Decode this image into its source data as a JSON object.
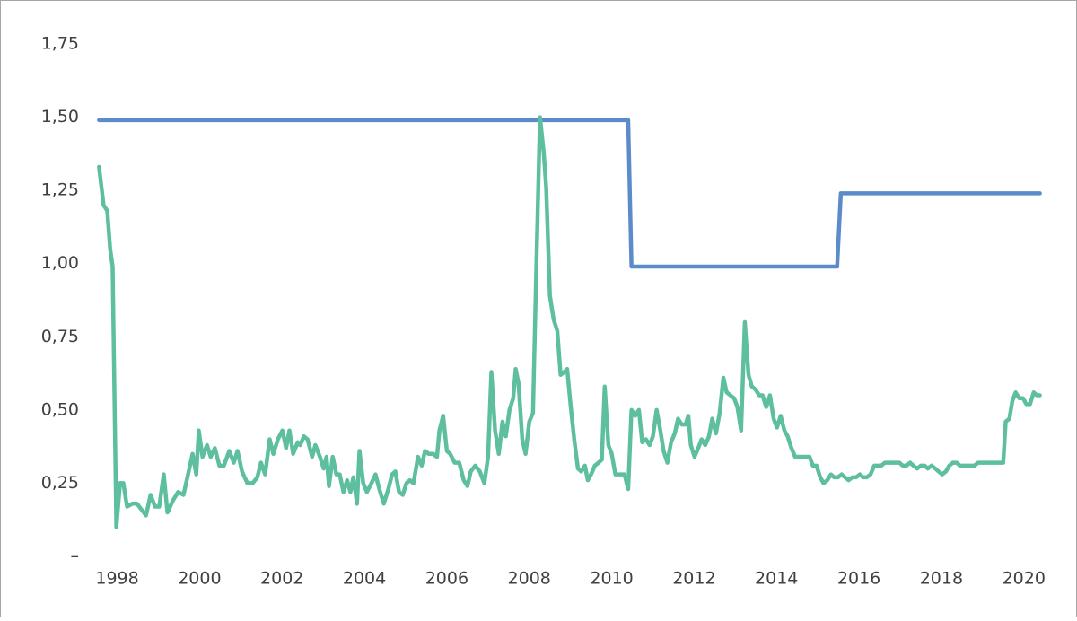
{
  "chart_data": {
    "type": "line",
    "xlim": [
      1997.4,
      2020.55
    ],
    "xticks": [
      1998,
      2000,
      2002,
      2004,
      2006,
      2008,
      2010,
      2012,
      2014,
      2016,
      2018,
      2020
    ],
    "ylim": [
      0,
      1.75
    ],
    "yticks": [
      {
        "value": 0,
        "label": "–"
      },
      {
        "value": 0.25,
        "label": "0,25"
      },
      {
        "value": 0.5,
        "label": "0,50"
      },
      {
        "value": 0.75,
        "label": "0,75"
      },
      {
        "value": 1.0,
        "label": "1,00"
      },
      {
        "value": 1.25,
        "label": "1,25"
      },
      {
        "value": 1.5,
        "label": "1,50"
      },
      {
        "value": 1.75,
        "label": "1,75"
      }
    ],
    "grid": false,
    "series": [
      {
        "color": "#5b8cc9",
        "x": [
          1997.56,
          2010.4,
          2010.48,
          2015.47,
          2015.56,
          2020.39
        ],
        "values": [
          1.49,
          1.49,
          0.99,
          0.99,
          1.24,
          1.24
        ]
      },
      {
        "color": "#5dbf9f",
        "x": [
          1997.56,
          1997.67,
          1997.76,
          1997.83,
          1997.89,
          1997.98,
          1998.07,
          1998.15,
          1998.24,
          1998.37,
          1998.48,
          1998.59,
          1998.7,
          1998.81,
          1998.92,
          1999.02,
          1999.13,
          1999.22,
          1999.35,
          1999.48,
          1999.61,
          1999.72,
          1999.83,
          1999.92,
          1999.98,
          2000.07,
          2000.18,
          2000.27,
          2000.37,
          2000.48,
          2000.59,
          2000.72,
          2000.83,
          2000.92,
          2001.03,
          2001.16,
          2001.29,
          2001.4,
          2001.49,
          2001.59,
          2001.7,
          2001.79,
          2001.9,
          2002.01,
          2002.1,
          2002.18,
          2002.27,
          2002.38,
          2002.44,
          2002.53,
          2002.62,
          2002.73,
          2002.81,
          2002.92,
          2003.01,
          2003.08,
          2003.14,
          2003.23,
          2003.32,
          2003.4,
          2003.49,
          2003.58,
          2003.66,
          2003.73,
          2003.82,
          2003.88,
          2003.97,
          2004.06,
          2004.17,
          2004.27,
          2004.36,
          2004.47,
          2004.58,
          2004.67,
          2004.75,
          2004.84,
          2004.93,
          2005.02,
          2005.1,
          2005.19,
          2005.3,
          2005.39,
          2005.47,
          2005.56,
          2005.67,
          2005.76,
          2005.82,
          2005.91,
          2006.0,
          2006.08,
          2006.19,
          2006.3,
          2006.41,
          2006.5,
          2006.58,
          2006.69,
          2006.8,
          2006.91,
          2007.0,
          2007.08,
          2007.17,
          2007.26,
          2007.35,
          2007.43,
          2007.52,
          2007.61,
          2007.67,
          2007.74,
          2007.83,
          2007.91,
          2008.0,
          2008.09,
          2008.17,
          2008.26,
          2008.35,
          2008.41,
          2008.5,
          2008.59,
          2008.68,
          2008.76,
          2008.85,
          2008.92,
          2009.0,
          2009.09,
          2009.18,
          2009.26,
          2009.35,
          2009.42,
          2009.5,
          2009.59,
          2009.68,
          2009.76,
          2009.83,
          2009.92,
          2010.0,
          2010.09,
          2010.22,
          2010.31,
          2010.4,
          2010.48,
          2010.57,
          2010.66,
          2010.74,
          2010.83,
          2010.92,
          2011.0,
          2011.09,
          2011.18,
          2011.26,
          2011.35,
          2011.44,
          2011.53,
          2011.61,
          2011.7,
          2011.79,
          2011.86,
          2011.92,
          2012.01,
          2012.1,
          2012.18,
          2012.27,
          2012.36,
          2012.44,
          2012.53,
          2012.62,
          2012.71,
          2012.79,
          2012.88,
          2012.97,
          2013.05,
          2013.14,
          2013.23,
          2013.32,
          2013.4,
          2013.49,
          2013.58,
          2013.66,
          2013.75,
          2013.84,
          2013.93,
          2014.01,
          2014.1,
          2014.19,
          2014.27,
          2014.36,
          2014.45,
          2014.53,
          2014.62,
          2014.71,
          2014.8,
          2014.88,
          2014.97,
          2015.06,
          2015.14,
          2015.23,
          2015.32,
          2015.4,
          2015.49,
          2015.58,
          2015.66,
          2015.75,
          2015.84,
          2015.93,
          2016.02,
          2016.1,
          2016.19,
          2016.28,
          2016.37,
          2016.45,
          2016.54,
          2016.63,
          2016.71,
          2016.8,
          2016.89,
          2016.98,
          2017.06,
          2017.15,
          2017.24,
          2017.32,
          2017.41,
          2017.5,
          2017.59,
          2017.67,
          2017.76,
          2017.85,
          2017.93,
          2018.02,
          2018.11,
          2018.19,
          2018.28,
          2018.37,
          2018.45,
          2018.54,
          2018.63,
          2018.71,
          2018.8,
          2018.89,
          2018.98,
          2019.06,
          2019.15,
          2019.24,
          2019.32,
          2019.41,
          2019.5,
          2019.56,
          2019.65,
          2019.72,
          2019.8,
          2019.89,
          2019.98,
          2020.06,
          2020.15,
          2020.24,
          2020.32,
          2020.39
        ],
        "values": [
          1.33,
          1.2,
          1.18,
          1.05,
          0.99,
          0.1,
          0.25,
          0.25,
          0.17,
          0.18,
          0.18,
          0.16,
          0.14,
          0.21,
          0.17,
          0.17,
          0.28,
          0.15,
          0.19,
          0.22,
          0.21,
          0.28,
          0.35,
          0.28,
          0.43,
          0.34,
          0.38,
          0.34,
          0.37,
          0.31,
          0.31,
          0.36,
          0.32,
          0.36,
          0.29,
          0.25,
          0.25,
          0.27,
          0.32,
          0.28,
          0.4,
          0.35,
          0.4,
          0.43,
          0.37,
          0.43,
          0.35,
          0.39,
          0.38,
          0.41,
          0.4,
          0.34,
          0.38,
          0.34,
          0.3,
          0.34,
          0.24,
          0.34,
          0.28,
          0.28,
          0.22,
          0.26,
          0.22,
          0.27,
          0.18,
          0.36,
          0.25,
          0.22,
          0.25,
          0.28,
          0.23,
          0.18,
          0.23,
          0.28,
          0.29,
          0.22,
          0.21,
          0.25,
          0.26,
          0.25,
          0.34,
          0.31,
          0.36,
          0.35,
          0.35,
          0.34,
          0.43,
          0.48,
          0.36,
          0.35,
          0.32,
          0.32,
          0.26,
          0.24,
          0.29,
          0.31,
          0.29,
          0.25,
          0.34,
          0.63,
          0.43,
          0.35,
          0.46,
          0.41,
          0.5,
          0.54,
          0.64,
          0.59,
          0.4,
          0.35,
          0.46,
          0.49,
          0.98,
          1.5,
          1.38,
          1.26,
          0.89,
          0.81,
          0.77,
          0.62,
          0.63,
          0.64,
          0.52,
          0.4,
          0.3,
          0.29,
          0.31,
          0.26,
          0.28,
          0.31,
          0.32,
          0.33,
          0.58,
          0.38,
          0.35,
          0.28,
          0.28,
          0.28,
          0.23,
          0.5,
          0.48,
          0.5,
          0.39,
          0.4,
          0.38,
          0.41,
          0.5,
          0.43,
          0.36,
          0.32,
          0.39,
          0.42,
          0.47,
          0.45,
          0.45,
          0.48,
          0.38,
          0.34,
          0.37,
          0.4,
          0.38,
          0.41,
          0.47,
          0.42,
          0.49,
          0.61,
          0.56,
          0.55,
          0.54,
          0.51,
          0.43,
          0.8,
          0.62,
          0.58,
          0.57,
          0.55,
          0.55,
          0.51,
          0.55,
          0.47,
          0.44,
          0.48,
          0.43,
          0.41,
          0.37,
          0.34,
          0.34,
          0.34,
          0.34,
          0.34,
          0.31,
          0.31,
          0.27,
          0.25,
          0.26,
          0.28,
          0.27,
          0.27,
          0.28,
          0.27,
          0.26,
          0.27,
          0.27,
          0.28,
          0.27,
          0.27,
          0.28,
          0.31,
          0.31,
          0.31,
          0.32,
          0.32,
          0.32,
          0.32,
          0.32,
          0.31,
          0.31,
          0.32,
          0.31,
          0.3,
          0.31,
          0.31,
          0.3,
          0.31,
          0.3,
          0.29,
          0.28,
          0.29,
          0.31,
          0.32,
          0.32,
          0.31,
          0.31,
          0.31,
          0.31,
          0.31,
          0.32,
          0.32,
          0.32,
          0.32,
          0.32,
          0.32,
          0.32,
          0.32,
          0.46,
          0.47,
          0.53,
          0.56,
          0.54,
          0.54,
          0.52,
          0.52,
          0.56,
          0.55,
          0.55
        ]
      }
    ]
  }
}
